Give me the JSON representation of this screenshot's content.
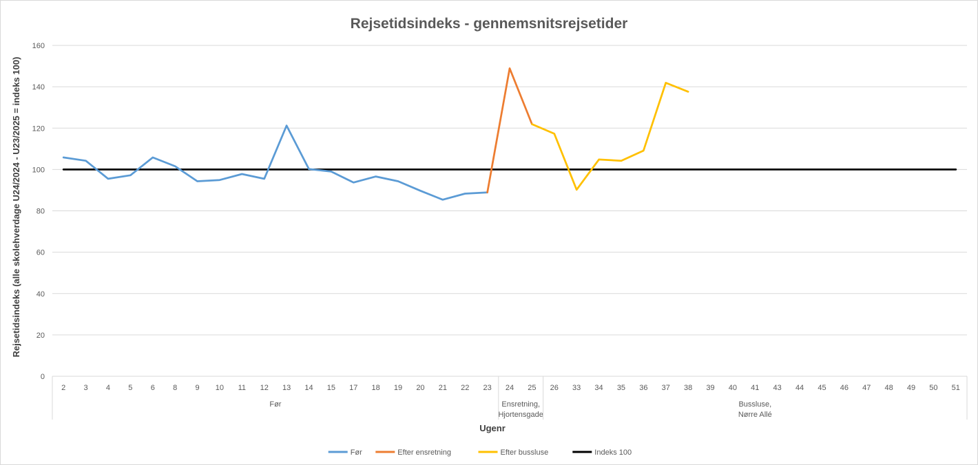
{
  "chart_data": {
    "type": "line",
    "title": "Rejsetidsindeks - gennemsnitsrejsetider",
    "xlabel": "Ugenr",
    "ylabel": "Rejsetidsindeks (alle skolehverdage U24/2024 - U23/2025 = indeks 100)",
    "ylim": [
      0,
      160
    ],
    "yticks": [
      "0",
      "20",
      "40",
      "60",
      "80",
      "100",
      "120",
      "140",
      "160"
    ],
    "grid": true,
    "legend_position": "bottom",
    "categories": [
      "2",
      "3",
      "4",
      "5",
      "6",
      "8",
      "9",
      "10",
      "11",
      "12",
      "13",
      "14",
      "15",
      "17",
      "18",
      "19",
      "20",
      "21",
      "22",
      "23",
      "24",
      "25",
      "26",
      "33",
      "34",
      "35",
      "36",
      "37",
      "38",
      "39",
      "40",
      "41",
      "43",
      "44",
      "45",
      "46",
      "47",
      "48",
      "49",
      "50",
      "51"
    ],
    "groups": [
      {
        "label_lines": [
          "Før"
        ],
        "count": 20
      },
      {
        "label_lines": [
          "Ensretning,",
          "Hjortensgade"
        ],
        "count": 2
      },
      {
        "label_lines": [
          "Bussluse,",
          "Nørre Allé"
        ],
        "count": 19
      }
    ],
    "series": [
      {
        "name": "Før",
        "color": "#5B9BD5",
        "values": [
          105.8,
          104.2,
          95.5,
          97.2,
          105.8,
          101.6,
          94.3,
          94.9,
          97.8,
          95.5,
          121.2,
          100.2,
          99.0,
          93.7,
          96.6,
          94.3,
          89.7,
          85.4,
          88.3,
          88.9,
          null,
          null,
          null,
          null,
          null,
          null,
          null,
          null,
          null,
          null,
          null,
          null,
          null,
          null,
          null,
          null,
          null,
          null,
          null,
          null,
          null
        ]
      },
      {
        "name": "Efter ensretning",
        "color": "#ED7D31",
        "values": [
          null,
          null,
          null,
          null,
          null,
          null,
          null,
          null,
          null,
          null,
          null,
          null,
          null,
          null,
          null,
          null,
          null,
          null,
          null,
          88.9,
          148.9,
          121.9,
          null,
          null,
          null,
          null,
          null,
          null,
          null,
          null,
          null,
          null,
          null,
          null,
          null,
          null,
          null,
          null,
          null,
          null,
          null
        ]
      },
      {
        "name": "Efter bussluse",
        "color": "#FFC000",
        "values": [
          null,
          null,
          null,
          null,
          null,
          null,
          null,
          null,
          null,
          null,
          null,
          null,
          null,
          null,
          null,
          null,
          null,
          null,
          null,
          null,
          null,
          121.9,
          117.3,
          90.2,
          104.8,
          104.2,
          109.1,
          141.9,
          137.6,
          null,
          null,
          null,
          null,
          null,
          null,
          null,
          null,
          null,
          null,
          null,
          null
        ]
      },
      {
        "name": "Indeks 100",
        "color": "#000000",
        "values": [
          100,
          100,
          100,
          100,
          100,
          100,
          100,
          100,
          100,
          100,
          100,
          100,
          100,
          100,
          100,
          100,
          100,
          100,
          100,
          100,
          100,
          100,
          100,
          100,
          100,
          100,
          100,
          100,
          100,
          100,
          100,
          100,
          100,
          100,
          100,
          100,
          100,
          100,
          100,
          100,
          100
        ]
      }
    ]
  }
}
